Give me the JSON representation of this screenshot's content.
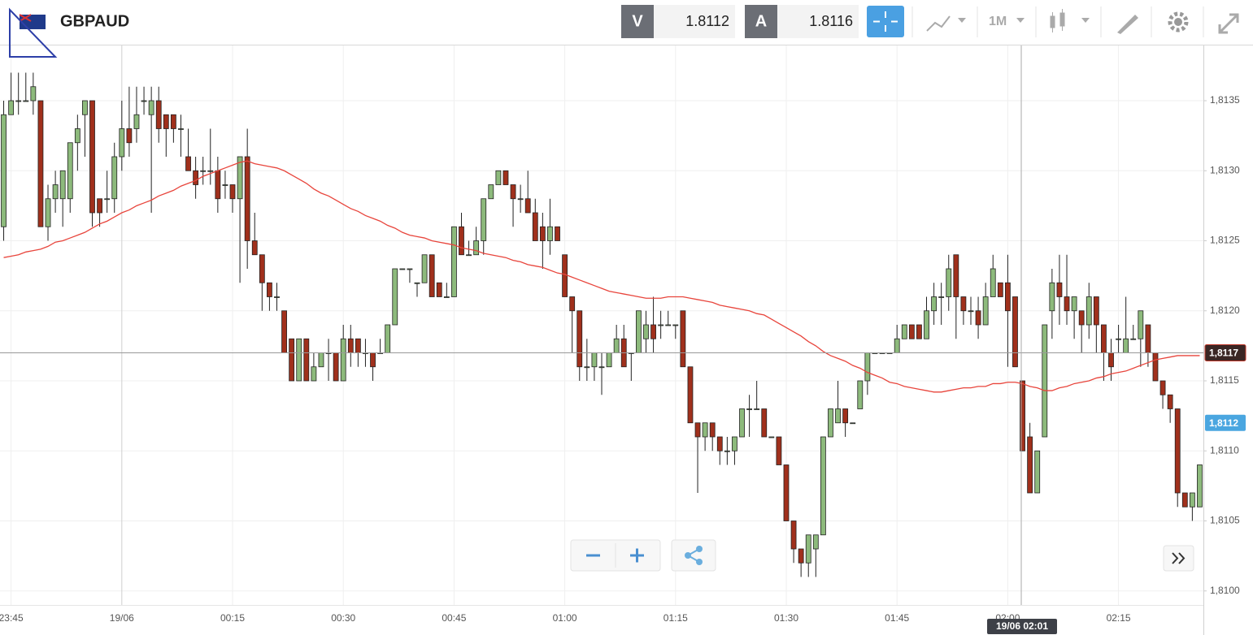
{
  "toolbar": {
    "symbol": "GBPAUD",
    "bid_label": "V",
    "bid": "1.8112",
    "ask_label": "A",
    "ask": "1.8116",
    "timeframe": "1M"
  },
  "chart_data": {
    "type": "candlestick",
    "categories": [
      null,
      "23:45",
      null,
      null,
      null,
      null,
      null,
      null,
      null,
      null,
      null,
      null,
      null,
      null,
      null,
      null,
      "19/06",
      null,
      null,
      null,
      null,
      null,
      null,
      null,
      null,
      null,
      null,
      null,
      null,
      null,
      null,
      "00:15",
      null,
      null,
      null,
      null,
      null,
      null,
      null,
      null,
      null,
      null,
      null,
      null,
      null,
      null,
      "00:30",
      null,
      null,
      null,
      null,
      null,
      null,
      null,
      null,
      null,
      null,
      null,
      null,
      null,
      null,
      "00:45",
      null,
      null,
      null,
      null,
      null,
      null,
      null,
      null,
      null,
      null,
      null,
      null,
      null,
      null,
      "01:00",
      null,
      null,
      null,
      null,
      null,
      null,
      null,
      null,
      null,
      null,
      null,
      null,
      null,
      null,
      "01:15",
      null,
      null,
      null,
      null,
      null,
      null,
      null,
      null,
      null,
      null,
      null,
      null,
      null,
      null,
      "01:30",
      null,
      null,
      null,
      null,
      null,
      null,
      null,
      null,
      null,
      null,
      null,
      null,
      null,
      null,
      "01:45",
      null,
      null,
      null,
      null,
      null,
      null,
      null,
      null,
      null,
      null,
      null,
      null,
      null,
      null,
      "02:00",
      null,
      null,
      null,
      null,
      null,
      null,
      null,
      null,
      null,
      null,
      null,
      null,
      null,
      null,
      "02:15",
      null,
      null,
      null,
      null,
      null,
      null,
      null,
      null,
      null,
      null,
      null
    ],
    "open": [
      1.8126,
      1.8134,
      1.8135,
      1.8135,
      1.8135,
      1.8135,
      1.8126,
      1.8128,
      1.8128,
      1.8128,
      1.8132,
      1.8134,
      1.8135,
      1.8128,
      1.8128,
      1.8128,
      1.8131,
      1.8133,
      1.8133,
      1.8135,
      1.8134,
      1.8135,
      1.8134,
      1.8134,
      1.8133,
      1.8131,
      1.813,
      1.813,
      1.813,
      1.813,
      1.8129,
      1.8129,
      1.8128,
      1.8131,
      1.8125,
      1.8124,
      1.8122,
      1.8121,
      1.812,
      1.8118,
      1.8115,
      1.8118,
      1.8115,
      1.8116,
      1.8117,
      1.8117,
      1.8115,
      1.8118,
      1.8118,
      1.8117,
      1.8117,
      1.8117,
      1.8117,
      1.8119,
      1.8123,
      1.8123,
      1.8122,
      1.8122,
      1.8124,
      1.8122,
      1.8121,
      1.8121,
      1.8126,
      1.8124,
      1.8124,
      1.8125,
      1.8128,
      1.8129,
      1.813,
      1.8129,
      1.8128,
      1.8128,
      1.8127,
      1.8126,
      1.8125,
      1.8126,
      1.8124,
      1.8121,
      1.812,
      1.8116,
      1.8116,
      1.8116,
      1.8116,
      1.8117,
      1.8118,
      1.8117,
      1.8117,
      1.8118,
      1.8119,
      1.8119,
      1.8119,
      1.8119,
      1.812,
      1.8116,
      1.8112,
      1.8111,
      1.8112,
      1.8111,
      1.811,
      1.811,
      1.8111,
      1.8113,
      1.8113,
      1.8113,
      1.8111,
      1.8111,
      1.8109,
      1.8105,
      1.8103,
      1.8102,
      1.8103,
      1.8104,
      1.8111,
      1.8112,
      1.8113,
      1.8112,
      1.8113,
      1.8115,
      1.8117,
      1.8117,
      1.8117,
      1.8117,
      1.8118,
      1.8119,
      1.8119,
      1.8118,
      1.812,
      1.8121,
      1.8121,
      1.8124,
      1.8121,
      1.812,
      1.812,
      1.8119,
      1.8121,
      1.8122,
      1.8122,
      1.8121,
      1.8115,
      1.8111,
      1.8107,
      1.8111,
      1.812,
      1.8122,
      1.8121,
      1.812,
      1.812,
      1.8119,
      1.8121,
      1.8119,
      1.8117,
      1.8118,
      1.8117,
      1.8118,
      1.8118,
      1.8119,
      1.8117,
      1.8115,
      1.8114,
      1.8113,
      1.8107,
      1.8106,
      1.8106
    ],
    "high": [
      1.8135,
      1.8137,
      1.8137,
      1.8137,
      1.8137,
      1.8135,
      1.8129,
      1.813,
      1.813,
      1.8132,
      1.8134,
      1.8135,
      1.8135,
      1.8128,
      1.813,
      1.8132,
      1.8135,
      1.8136,
      1.8136,
      1.8136,
      1.8136,
      1.8136,
      1.8134,
      1.8134,
      1.8134,
      1.8133,
      1.8131,
      1.8131,
      1.8133,
      1.8131,
      1.813,
      1.8129,
      1.8131,
      1.8133,
      1.8127,
      1.8124,
      1.8122,
      1.8122,
      1.812,
      1.8118,
      1.8118,
      1.8118,
      1.8117,
      1.8117,
      1.8118,
      1.8117,
      1.8119,
      1.8119,
      1.8118,
      1.8118,
      1.8117,
      1.8118,
      1.8119,
      1.8123,
      1.8123,
      1.8123,
      1.8122,
      1.8124,
      1.8124,
      1.8122,
      1.8122,
      1.8126,
      1.8127,
      1.8125,
      1.8126,
      1.8128,
      1.8129,
      1.813,
      1.813,
      1.8129,
      1.8129,
      1.813,
      1.8128,
      1.8127,
      1.8128,
      1.8126,
      1.8124,
      1.8121,
      1.812,
      1.8118,
      1.8117,
      1.8117,
      1.8117,
      1.8119,
      1.8119,
      1.8117,
      1.812,
      1.812,
      1.8121,
      1.812,
      1.812,
      1.8119,
      1.812,
      1.8116,
      1.8112,
      1.8112,
      1.8112,
      1.8111,
      1.8111,
      1.8111,
      1.8113,
      1.8114,
      1.8115,
      1.8113,
      1.8111,
      1.8111,
      1.8109,
      1.8105,
      1.8103,
      1.8104,
      1.8104,
      1.8111,
      1.8113,
      1.8115,
      1.8113,
      1.8112,
      1.8115,
      1.8117,
      1.8117,
      1.8117,
      1.8117,
      1.8119,
      1.8119,
      1.8119,
      1.8119,
      1.8121,
      1.8122,
      1.8122,
      1.8124,
      1.8124,
      1.8121,
      1.8121,
      1.8121,
      1.8122,
      1.8124,
      1.8122,
      1.8124,
      1.8121,
      1.8115,
      1.8112,
      1.811,
      1.8119,
      1.8123,
      1.8124,
      1.8124,
      1.8121,
      1.812,
      1.8122,
      1.8121,
      1.8119,
      1.8118,
      1.8119,
      1.8121,
      1.8119,
      1.812,
      1.8119,
      1.8117,
      1.8115,
      1.8114,
      1.8113,
      1.8107,
      1.8107,
      1.8109
    ],
    "low": [
      1.8125,
      1.8134,
      1.8134,
      1.8135,
      1.8134,
      1.8126,
      1.8125,
      1.8127,
      1.8126,
      1.8127,
      1.813,
      1.8131,
      1.8126,
      1.8126,
      1.8127,
      1.8127,
      1.813,
      1.8131,
      1.8132,
      1.8134,
      1.8127,
      1.8132,
      1.8131,
      1.8132,
      1.8131,
      1.813,
      1.8128,
      1.8129,
      1.8129,
      1.8127,
      1.8128,
      1.8127,
      1.8122,
      1.8123,
      1.8124,
      1.812,
      1.812,
      1.812,
      1.8117,
      1.8115,
      1.8115,
      1.8115,
      1.8115,
      1.8116,
      1.8115,
      1.8115,
      1.8115,
      1.8116,
      1.8116,
      1.8116,
      1.8115,
      1.8117,
      1.8117,
      1.8119,
      1.8123,
      1.8122,
      1.8121,
      1.8122,
      1.8121,
      1.8121,
      1.8121,
      1.8121,
      1.8124,
      1.8124,
      1.8124,
      1.8124,
      1.8128,
      1.8129,
      1.8129,
      1.8126,
      1.8127,
      1.8127,
      1.8125,
      1.8123,
      1.8124,
      1.8125,
      1.8121,
      1.8117,
      1.8115,
      1.8115,
      1.8115,
      1.8114,
      1.8116,
      1.8117,
      1.8116,
      1.8115,
      1.8117,
      1.8117,
      1.8117,
      1.8118,
      1.8119,
      1.8118,
      1.8116,
      1.8112,
      1.8107,
      1.811,
      1.811,
      1.8109,
      1.8109,
      1.8109,
      1.8111,
      1.8111,
      1.8113,
      1.8111,
      1.8111,
      1.8109,
      1.8105,
      1.8102,
      1.8101,
      1.8101,
      1.8101,
      1.8104,
      1.8111,
      1.8112,
      1.8111,
      1.8112,
      1.8113,
      1.8114,
      1.8117,
      1.8117,
      1.8117,
      1.8117,
      1.8118,
      1.8118,
      1.8118,
      1.8118,
      1.8119,
      1.8119,
      1.812,
      1.8118,
      1.8119,
      1.8119,
      1.8118,
      1.8119,
      1.8121,
      1.8121,
      1.8116,
      1.8116,
      1.811,
      1.8107,
      1.8107,
      1.8111,
      1.8118,
      1.8119,
      1.8119,
      1.8118,
      1.8117,
      1.8118,
      1.8117,
      1.8115,
      1.8115,
      1.8117,
      1.8117,
      1.8118,
      1.8116,
      1.8116,
      1.8115,
      1.8113,
      1.8112,
      1.8106,
      1.8106,
      1.8105,
      1.8106
    ],
    "close": [
      1.8134,
      1.8135,
      1.8135,
      1.8135,
      1.8136,
      1.8126,
      1.8128,
      1.8129,
      1.813,
      1.8132,
      1.8133,
      1.8135,
      1.8127,
      1.8127,
      1.8128,
      1.8131,
      1.8133,
      1.8132,
      1.8134,
      1.8135,
      1.8135,
      1.8133,
      1.8133,
      1.8133,
      1.8133,
      1.813,
      1.8129,
      1.813,
      1.813,
      1.8128,
      1.8129,
      1.8128,
      1.8131,
      1.8125,
      1.8124,
      1.8122,
      1.8121,
      1.8121,
      1.8117,
      1.8115,
      1.8118,
      1.8115,
      1.8116,
      1.8117,
      1.8117,
      1.8115,
      1.8118,
      1.8117,
      1.8117,
      1.8117,
      1.8116,
      1.8117,
      1.8119,
      1.8123,
      1.8123,
      1.8123,
      1.8122,
      1.8124,
      1.8121,
      1.8121,
      1.8121,
      1.8126,
      1.8124,
      1.8124,
      1.8125,
      1.8128,
      1.8129,
      1.813,
      1.8129,
      1.8128,
      1.8128,
      1.8127,
      1.8125,
      1.8125,
      1.8126,
      1.8125,
      1.8121,
      1.812,
      1.8116,
      1.8116,
      1.8117,
      1.8116,
      1.8117,
      1.8118,
      1.8116,
      1.8117,
      1.812,
      1.8119,
      1.8118,
      1.8119,
      1.8119,
      1.8119,
      1.8116,
      1.8112,
      1.8111,
      1.8112,
      1.8111,
      1.811,
      1.811,
      1.8111,
      1.8113,
      1.8113,
      1.8113,
      1.8111,
      1.8111,
      1.8109,
      1.8105,
      1.8103,
      1.8102,
      1.8104,
      1.8104,
      1.8111,
      1.8113,
      1.8113,
      1.8112,
      1.8112,
      1.8115,
      1.8117,
      1.8117,
      1.8117,
      1.8117,
      1.8118,
      1.8119,
      1.8118,
      1.8118,
      1.812,
      1.8121,
      1.8121,
      1.8123,
      1.8121,
      1.812,
      1.812,
      1.8119,
      1.8121,
      1.8123,
      1.8121,
      1.812,
      1.8116,
      1.811,
      1.8107,
      1.811,
      1.8119,
      1.8122,
      1.8121,
      1.812,
      1.8121,
      1.8119,
      1.8121,
      1.8119,
      1.8117,
      1.8116,
      1.8118,
      1.8118,
      1.8118,
      1.812,
      1.8117,
      1.8115,
      1.8114,
      1.8113,
      1.8107,
      1.8106,
      1.8107,
      1.8109
    ],
    "up_color": "#8dba7c",
    "down_color": "#a0301c",
    "border_color": "#222222",
    "series": [
      {
        "color": "#e8453c",
        "values": [
          1.81238,
          1.81239,
          1.8124,
          1.81242,
          1.81243,
          1.81244,
          1.81246,
          1.81249,
          1.8125,
          1.81252,
          1.81254,
          1.81256,
          1.81259,
          1.81262,
          1.81264,
          1.81267,
          1.8127,
          1.81272,
          1.81275,
          1.81277,
          1.81279,
          1.81282,
          1.81284,
          1.81286,
          1.81289,
          1.81291,
          1.81293,
          1.81296,
          1.81298,
          1.813,
          1.81302,
          1.81304,
          1.81306,
          1.81307,
          1.81305,
          1.81304,
          1.81303,
          1.81302,
          1.813,
          1.81297,
          1.81294,
          1.81291,
          1.81287,
          1.81284,
          1.81282,
          1.81279,
          1.81276,
          1.81273,
          1.81271,
          1.81268,
          1.81266,
          1.81264,
          1.81261,
          1.81259,
          1.81256,
          1.81254,
          1.81253,
          1.81252,
          1.8125,
          1.81249,
          1.81248,
          1.81247,
          1.81245,
          1.81244,
          1.81243,
          1.81241,
          1.8124,
          1.81239,
          1.81238,
          1.81236,
          1.81235,
          1.81233,
          1.81232,
          1.81231,
          1.81229,
          1.81227,
          1.81226,
          1.81224,
          1.81222,
          1.8122,
          1.81218,
          1.81216,
          1.81214,
          1.81213,
          1.81212,
          1.81211,
          1.8121,
          1.81209,
          1.81209,
          1.81209,
          1.8121,
          1.8121,
          1.8121,
          1.81209,
          1.81208,
          1.81207,
          1.81206,
          1.81204,
          1.81203,
          1.81202,
          1.81201,
          1.812,
          1.81198,
          1.81197,
          1.81194,
          1.81191,
          1.81188,
          1.81185,
          1.81182,
          1.81178,
          1.81175,
          1.81171,
          1.81168,
          1.81166,
          1.81164,
          1.81161,
          1.81159,
          1.81156,
          1.81154,
          1.81152,
          1.81149,
          1.81148,
          1.81146,
          1.81145,
          1.81144,
          1.81143,
          1.81142,
          1.81142,
          1.81143,
          1.81144,
          1.81145,
          1.81145,
          1.81146,
          1.81146,
          1.81148,
          1.81148,
          1.81149,
          1.81149,
          1.81148,
          1.81146,
          1.81145,
          1.81143,
          1.81143,
          1.81145,
          1.81146,
          1.81148,
          1.81149,
          1.8115,
          1.81152,
          1.81153,
          1.81155,
          1.81156,
          1.81157,
          1.81159,
          1.81161,
          1.81163,
          1.81165,
          1.81166,
          1.81167,
          1.81168,
          1.81168,
          1.81168,
          1.81168
        ]
      }
    ],
    "ylim": [
      1.8099,
      1.8139
    ],
    "yticks": [
      {
        "value": 1.81,
        "label": "1,8100"
      },
      {
        "value": 1.8105,
        "label": "1,8105"
      },
      {
        "value": 1.811,
        "label": "1,8110"
      },
      {
        "value": 1.8115,
        "label": "1,8115"
      },
      {
        "value": 1.812,
        "label": "1,8120"
      },
      {
        "value": 1.8125,
        "label": "1,8125"
      },
      {
        "value": 1.813,
        "label": "1,8130"
      },
      {
        "value": 1.8135,
        "label": "1,8135"
      }
    ],
    "grid": true,
    "crosshair": {
      "value": 1.8117,
      "label": "1,8117",
      "x_label": "19/06 02:01"
    },
    "last_price": {
      "value": 1.8112,
      "label": "1,8112"
    }
  }
}
